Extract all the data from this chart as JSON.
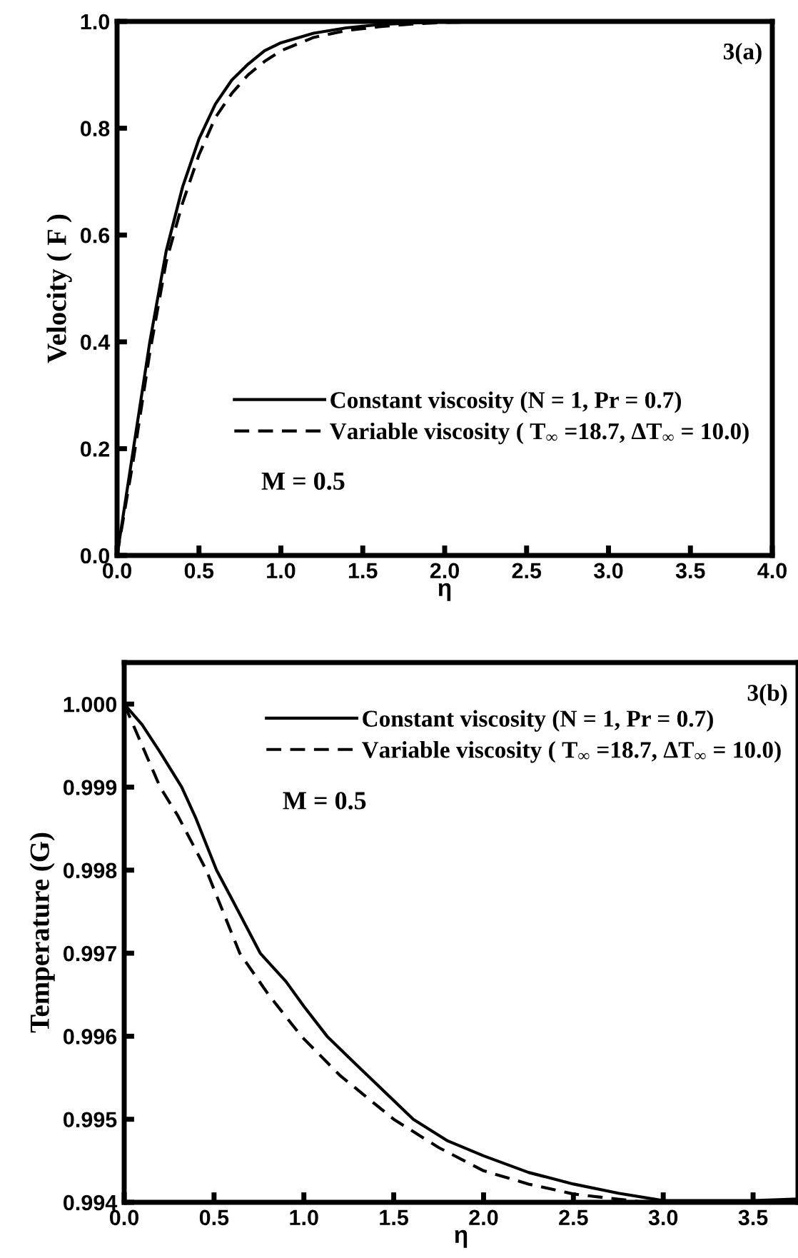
{
  "chart_data": [
    {
      "type": "line",
      "xlabel": "η",
      "ylabel": "Velocity ( F )",
      "annotations": [
        "3(a)",
        "M = 0.5"
      ],
      "xlim": [
        0,
        4
      ],
      "ylim": [
        0,
        1
      ],
      "xticks": [
        {
          "value": 0,
          "label": "0.0"
        },
        {
          "value": 0.5,
          "label": "0.5"
        },
        {
          "value": 1,
          "label": "1.0"
        },
        {
          "value": 1.5,
          "label": "1.5"
        },
        {
          "value": 2,
          "label": "2.0"
        },
        {
          "value": 2.5,
          "label": "2.5"
        },
        {
          "value": 3,
          "label": "3.0"
        },
        {
          "value": 3.5,
          "label": "3.5"
        },
        {
          "value": 4,
          "label": "4.0"
        }
      ],
      "yticks": [
        {
          "value": 0,
          "label": "0.0"
        },
        {
          "value": 0.2,
          "label": "0.2"
        },
        {
          "value": 0.4,
          "label": "0.4"
        },
        {
          "value": 0.6,
          "label": "0.6"
        },
        {
          "value": 0.8,
          "label": "0.8"
        },
        {
          "value": 1,
          "label": "1.0"
        }
      ],
      "legend": "bottom right",
      "grid": false,
      "x": [
        0,
        0.05,
        0.1,
        0.15,
        0.2,
        0.3,
        0.4,
        0.5,
        0.6,
        0.7,
        0.8,
        0.9,
        1.0,
        1.2,
        1.4,
        1.6,
        1.8,
        2.0,
        2.5,
        3.0,
        3.5,
        4.0
      ],
      "series": [
        {
          "name": "Constant viscosity (N = 1, Pr = 0.7)",
          "color": "#000000",
          "line_style": "solid",
          "values": [
            0,
            0.1,
            0.2,
            0.3,
            0.4,
            0.57,
            0.69,
            0.78,
            0.845,
            0.89,
            0.92,
            0.945,
            0.96,
            0.978,
            0.988,
            0.994,
            0.997,
            0.999,
            1.0,
            1.0,
            1.0,
            1.0
          ]
        },
        {
          "name": "Variable viscosity ( T$_{∞}$ =18.7, ΔT$_{∞}$ = 10.0)",
          "color": "#000000",
          "line_style": "dashed",
          "values": [
            0,
            0.09,
            0.18,
            0.28,
            0.38,
            0.55,
            0.66,
            0.75,
            0.82,
            0.865,
            0.9,
            0.925,
            0.945,
            0.97,
            0.983,
            0.99,
            0.995,
            0.998,
            1.0,
            1.0,
            1.0,
            1.0
          ]
        }
      ]
    },
    {
      "type": "line",
      "xlabel": "η",
      "ylabel": "Temperature (G)",
      "annotations": [
        "3(b)",
        "M = 0.5"
      ],
      "xlim": [
        0,
        3.75
      ],
      "ylim": [
        0.994,
        1.0005
      ],
      "xticks": [
        {
          "value": 0,
          "label": "0.0"
        },
        {
          "value": 0.5,
          "label": "0.5"
        },
        {
          "value": 1,
          "label": "1.0"
        },
        {
          "value": 1.5,
          "label": "1.5"
        },
        {
          "value": 2,
          "label": "2.0"
        },
        {
          "value": 2.5,
          "label": "2.5"
        },
        {
          "value": 3,
          "label": "3.0"
        },
        {
          "value": 3.5,
          "label": "3.5"
        }
      ],
      "yticks": [
        {
          "value": 0.994,
          "label": "0.994"
        },
        {
          "value": 0.995,
          "label": "0.995"
        },
        {
          "value": 0.996,
          "label": "0.996"
        },
        {
          "value": 0.997,
          "label": "0.997"
        },
        {
          "value": 0.998,
          "label": "0.998"
        },
        {
          "value": 0.999,
          "label": "0.999"
        },
        {
          "value": 1.0,
          "label": "1.000"
        }
      ],
      "legend": "top right",
      "grid": false,
      "series": [
        {
          "name": "Constant viscosity (N = 1, Pr = 0.7)",
          "color": "#000000",
          "line_style": "solid",
          "x": [
            0,
            0.1,
            0.2,
            0.32,
            0.4,
            0.514,
            0.6,
            0.757,
            0.9,
            1.0,
            1.129,
            1.3,
            1.609,
            1.8,
            2.0,
            2.25,
            2.5,
            2.75,
            3.0,
            3.5,
            3.75
          ],
          "values": [
            1.0,
            0.99975,
            0.99942,
            0.999,
            0.99862,
            0.998,
            0.99765,
            0.997,
            0.99666,
            0.99636,
            0.996,
            0.99564,
            0.995,
            0.99474,
            0.99456,
            0.99436,
            0.99422,
            0.99411,
            0.99402,
            0.99402,
            0.99404
          ]
        },
        {
          "name": "Variable viscosity ( T$_{∞}$ =18.7, ΔT$_{∞}$ = 10.0)",
          "color": "#000000",
          "line_style": "dashed",
          "x": [
            0,
            0.1,
            0.2,
            0.3,
            0.457,
            0.643,
            0.8,
            0.986,
            1.2,
            1.5,
            1.75,
            2.0,
            2.25,
            2.5,
            2.9
          ],
          "values": [
            1.0,
            0.9995,
            0.999,
            0.99865,
            0.998,
            0.997,
            0.99651,
            0.996,
            0.99553,
            0.995,
            0.99466,
            0.99438,
            0.99422,
            0.9941,
            0.994
          ]
        }
      ]
    }
  ]
}
